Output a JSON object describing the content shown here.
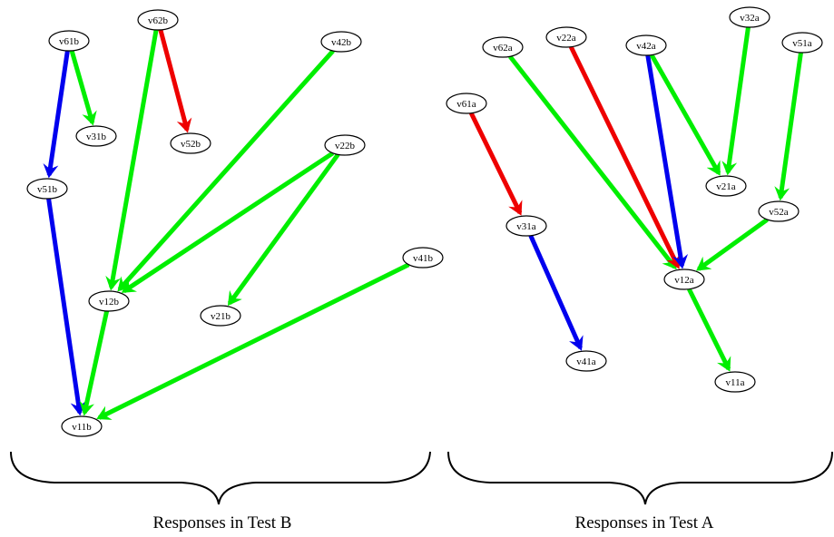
{
  "colors": {
    "green": "#00ee00",
    "blue": "#0000ee",
    "red": "#ee0000",
    "node_stroke": "#000000",
    "node_fill": "#ffffff"
  },
  "groups": [
    {
      "caption": "Responses in Test B",
      "nodes": [
        "v61b",
        "v62b",
        "v42b",
        "v31b",
        "v52b",
        "v22b",
        "v51b",
        "v41b",
        "v12b",
        "v21b",
        "v11b"
      ],
      "edges": [
        {
          "from": "v61b",
          "to": "v51b",
          "color": "blue"
        },
        {
          "from": "v61b",
          "to": "v31b",
          "color": "green"
        },
        {
          "from": "v62b",
          "to": "v52b",
          "color": "red"
        },
        {
          "from": "v62b",
          "to": "v12b",
          "color": "green"
        },
        {
          "from": "v42b",
          "to": "v12b",
          "color": "green"
        },
        {
          "from": "v22b",
          "to": "v12b",
          "color": "green"
        },
        {
          "from": "v22b",
          "to": "v21b",
          "color": "green"
        },
        {
          "from": "v51b",
          "to": "v11b",
          "color": "blue"
        },
        {
          "from": "v12b",
          "to": "v11b",
          "color": "green"
        },
        {
          "from": "v41b",
          "to": "v11b",
          "color": "green"
        }
      ]
    },
    {
      "caption": "Responses in Test A",
      "nodes": [
        "v62a",
        "v22a",
        "v42a",
        "v32a",
        "v51a",
        "v61a",
        "v21a",
        "v31a",
        "v52a",
        "v12a",
        "v41a",
        "v11a"
      ],
      "edges": [
        {
          "from": "v61a",
          "to": "v31a",
          "color": "red"
        },
        {
          "from": "v31a",
          "to": "v41a",
          "color": "blue"
        },
        {
          "from": "v62a",
          "to": "v12a",
          "color": "green"
        },
        {
          "from": "v22a",
          "to": "v12a",
          "color": "red"
        },
        {
          "from": "v42a",
          "to": "v12a",
          "color": "blue"
        },
        {
          "from": "v42a",
          "to": "v21a",
          "color": "green"
        },
        {
          "from": "v32a",
          "to": "v21a",
          "color": "green"
        },
        {
          "from": "v51a",
          "to": "v52a",
          "color": "green"
        },
        {
          "from": "v52a",
          "to": "v12a",
          "color": "green"
        },
        {
          "from": "v12a",
          "to": "v11a",
          "color": "green"
        }
      ]
    }
  ]
}
